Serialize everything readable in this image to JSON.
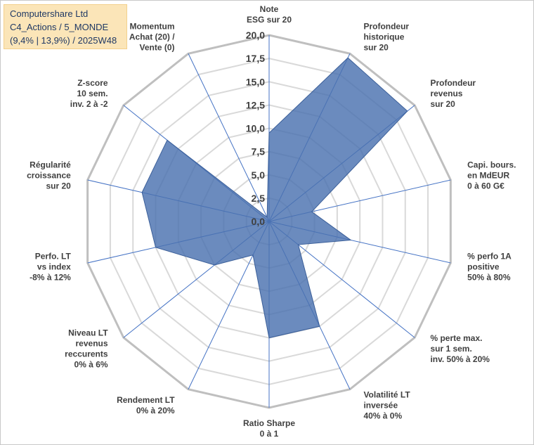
{
  "title_box": {
    "line1": "Computershare Ltd",
    "line2": "C4_Actions / 5_MONDE",
    "line3": "(9,4% | 13,9%) / 2025W48"
  },
  "colors": {
    "fill": "#4a72b0",
    "grid_ring": "#d9d9d9",
    "outer_ring": "#bfbfbf",
    "spoke": "#4472c4",
    "title_bg": "#fbe5b8",
    "title_text": "#1f3864"
  },
  "chart_data": {
    "type": "radar",
    "rmin": 0,
    "rmax": 20,
    "ticks": [
      "0,0",
      "2,5",
      "5,0",
      "7,5",
      "10,0",
      "12,5",
      "15,0",
      "17,5",
      "20,0"
    ],
    "tick_values": [
      0,
      2.5,
      5,
      7.5,
      10,
      12.5,
      15,
      17.5,
      20
    ],
    "axes": [
      {
        "label": [
          "Note",
          "ESG sur 20"
        ],
        "value": 9.5
      },
      {
        "label": [
          "Profondeur",
          "historique",
          "sur 20"
        ],
        "value": 19.5
      },
      {
        "label": [
          "Profondeur",
          "revenus",
          "sur 20"
        ],
        "value": 19.0
      },
      {
        "label": [
          "Capi. bours.",
          "en MdEUR",
          "0 à 60 G€"
        ],
        "value": 4.7
      },
      {
        "label": [
          "% perfo 1A",
          "positive",
          "50% à 80%"
        ],
        "value": 9.0
      },
      {
        "label": [
          "% perte max.",
          "sur 1 sem.",
          "inv. 50% à 20%"
        ],
        "value": 4.0
      },
      {
        "label": [
          "Volatilité LT",
          "inversée",
          "40% à 0%"
        ],
        "value": 12.5
      },
      {
        "label": [
          "Ratio Sharpe",
          "0 à 1"
        ],
        "value": 12.5
      },
      {
        "label": [
          "Rendement LT",
          "0% à 20%"
        ],
        "value": 4.0
      },
      {
        "label": [
          "Niveau LT",
          "revenus",
          "reccurents",
          "0% à 6%"
        ],
        "value": 7.5
      },
      {
        "label": [
          "Perfo. LT",
          "vs index",
          "-8% à 12%"
        ],
        "value": 12.5
      },
      {
        "label": [
          "Régularité",
          "croissance",
          "sur 20"
        ],
        "value": 14.0
      },
      {
        "label": [
          "Z-score",
          "10 sem.",
          "inv. 2 à -2"
        ],
        "value": 14.0
      },
      {
        "label": [
          "Momentum",
          "Achat (20) /",
          "Vente (0)"
        ],
        "value": 0.5
      }
    ]
  }
}
